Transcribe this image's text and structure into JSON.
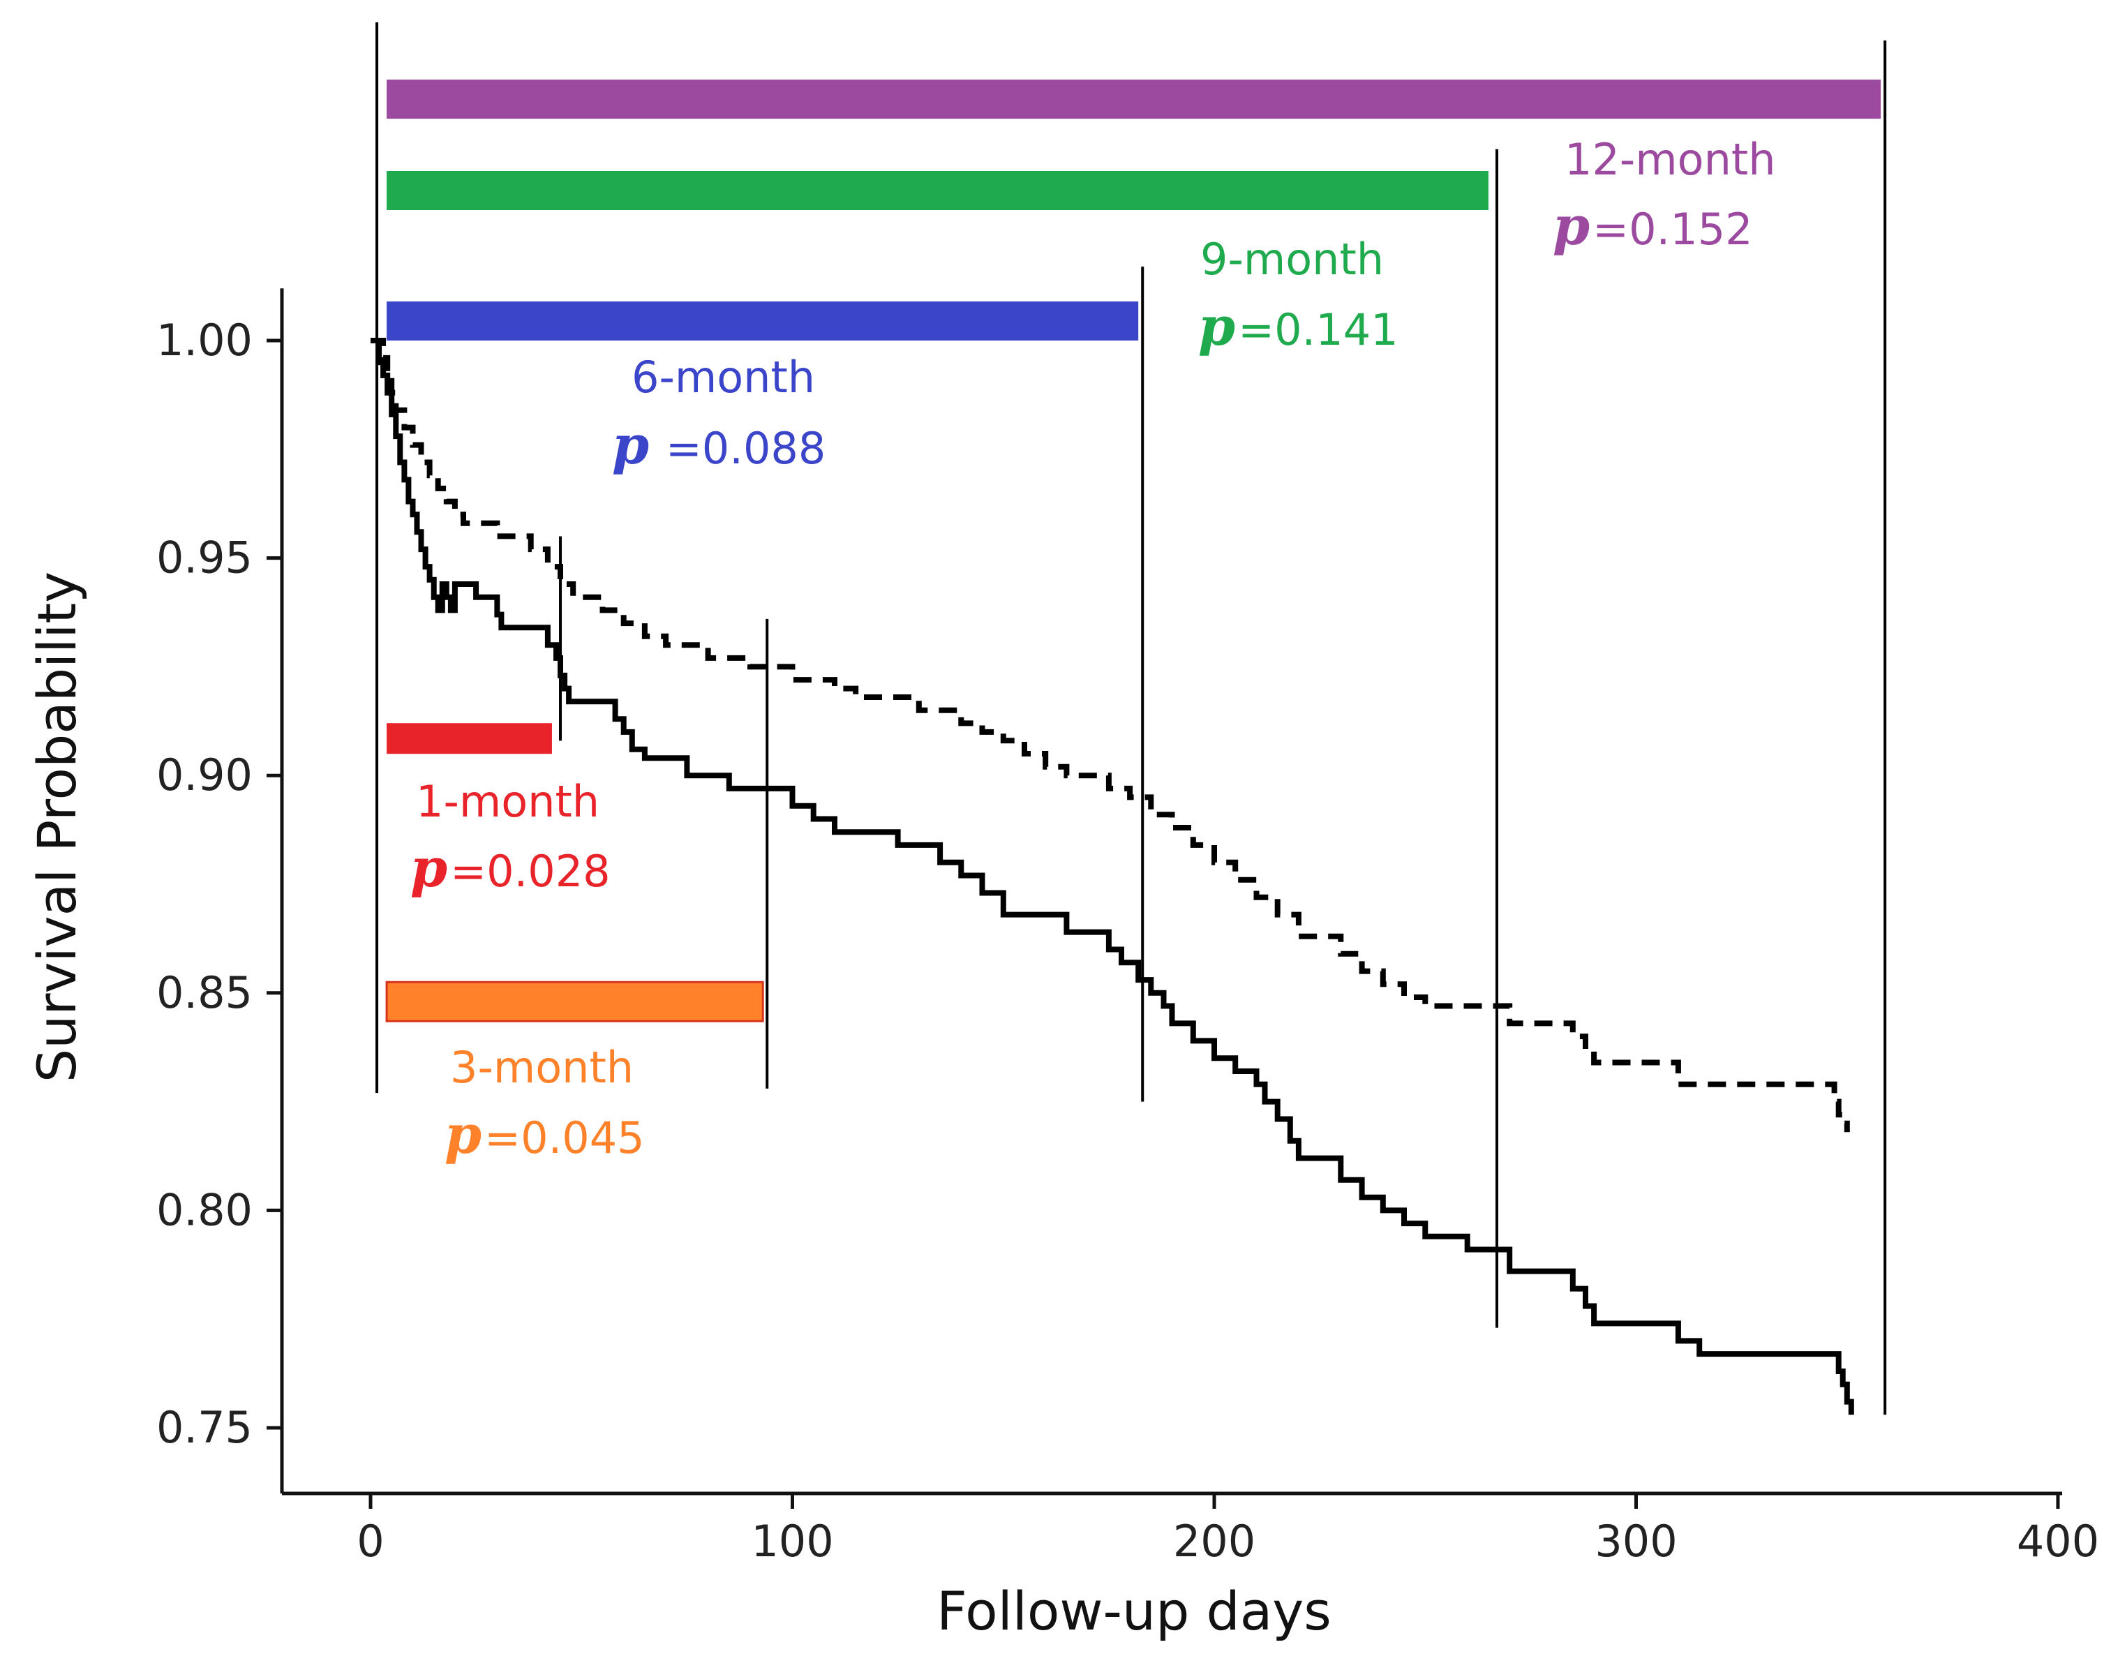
{
  "chart_data": {
    "type": "line",
    "title": "",
    "xlabel": "Follow-up days",
    "ylabel": "Survival Probability",
    "xlim": [
      -20,
      400
    ],
    "ylim": [
      0.745,
      1.012
    ],
    "x_ticks": [
      {
        "value": 0,
        "label": "0"
      },
      {
        "value": 100,
        "label": "100"
      },
      {
        "value": 200,
        "label": "200"
      },
      {
        "value": 300,
        "label": "300"
      },
      {
        "value": 400,
        "label": "400"
      }
    ],
    "y_ticks": [
      {
        "value": 1.0,
        "label": "1.00"
      },
      {
        "value": 0.95,
        "label": "0.95"
      },
      {
        "value": 0.9,
        "label": "0.90"
      },
      {
        "value": 0.85,
        "label": "0.85"
      },
      {
        "value": 0.8,
        "label": "0.80"
      },
      {
        "value": 0.75,
        "label": "0.75"
      }
    ],
    "series": [
      {
        "name": "solid",
        "style": "solid",
        "color": "#000000",
        "x": [
          0,
          2,
          3,
          4,
          5,
          6,
          7,
          8,
          9,
          10,
          11,
          12,
          13,
          14,
          15,
          16,
          17,
          18,
          19,
          20,
          25,
          30,
          31,
          38,
          42,
          44,
          45,
          46,
          47,
          50,
          58,
          60,
          62,
          65,
          70,
          75,
          85,
          90,
          95,
          100,
          105,
          110,
          115,
          125,
          135,
          140,
          145,
          150,
          160,
          165,
          170,
          175,
          178,
          180,
          182,
          185,
          188,
          190,
          195,
          200,
          205,
          210,
          212,
          215,
          218,
          220,
          230,
          235,
          240,
          245,
          250,
          260,
          270,
          280,
          285,
          288,
          290,
          300,
          310,
          315,
          320,
          330,
          340,
          348,
          349,
          350,
          351
        ],
        "y": [
          1.0,
          0.995,
          0.992,
          0.988,
          0.983,
          0.978,
          0.972,
          0.968,
          0.963,
          0.96,
          0.956,
          0.952,
          0.948,
          0.945,
          0.941,
          0.938,
          0.944,
          0.941,
          0.938,
          0.944,
          0.941,
          0.937,
          0.934,
          0.934,
          0.93,
          0.927,
          0.923,
          0.92,
          0.917,
          0.917,
          0.913,
          0.91,
          0.906,
          0.904,
          0.904,
          0.9,
          0.897,
          0.897,
          0.897,
          0.893,
          0.89,
          0.887,
          0.887,
          0.884,
          0.88,
          0.877,
          0.873,
          0.868,
          0.868,
          0.864,
          0.864,
          0.86,
          0.857,
          0.857,
          0.853,
          0.85,
          0.847,
          0.843,
          0.839,
          0.835,
          0.832,
          0.829,
          0.825,
          0.821,
          0.816,
          0.812,
          0.807,
          0.803,
          0.8,
          0.797,
          0.794,
          0.791,
          0.786,
          0.786,
          0.782,
          0.778,
          0.774,
          0.774,
          0.77,
          0.767,
          0.767,
          0.767,
          0.767,
          0.763,
          0.76,
          0.756,
          0.753
        ]
      },
      {
        "name": "dashed",
        "style": "dashed",
        "color": "#000000",
        "x": [
          0,
          3,
          4,
          5,
          6,
          8,
          10,
          12,
          14,
          16,
          18,
          20,
          22,
          25,
          30,
          35,
          38,
          42,
          45,
          48,
          50,
          55,
          60,
          65,
          70,
          75,
          80,
          85,
          90,
          95,
          100,
          105,
          110,
          115,
          120,
          130,
          140,
          145,
          150,
          155,
          160,
          165,
          170,
          175,
          180,
          185,
          190,
          195,
          200,
          205,
          210,
          215,
          220,
          225,
          230,
          235,
          240,
          245,
          250,
          260,
          270,
          280,
          285,
          288,
          290,
          300,
          310,
          315,
          320,
          330,
          340,
          347,
          348,
          349,
          350
        ],
        "y": [
          1.0,
          0.996,
          0.992,
          0.988,
          0.984,
          0.98,
          0.976,
          0.972,
          0.969,
          0.966,
          0.963,
          0.96,
          0.958,
          0.958,
          0.955,
          0.955,
          0.952,
          0.948,
          0.944,
          0.941,
          0.941,
          0.938,
          0.935,
          0.932,
          0.93,
          0.93,
          0.927,
          0.927,
          0.925,
          0.925,
          0.922,
          0.922,
          0.92,
          0.918,
          0.918,
          0.915,
          0.912,
          0.91,
          0.908,
          0.905,
          0.902,
          0.9,
          0.9,
          0.897,
          0.895,
          0.891,
          0.888,
          0.884,
          0.88,
          0.876,
          0.872,
          0.868,
          0.863,
          0.863,
          0.859,
          0.855,
          0.852,
          0.849,
          0.847,
          0.847,
          0.843,
          0.843,
          0.84,
          0.837,
          0.834,
          0.834,
          0.829,
          0.829,
          0.829,
          0.829,
          0.829,
          0.825,
          0.822,
          0.82,
          0.818
        ]
      }
    ],
    "period_markers": [
      {
        "label": "1-month",
        "p_symbol": "p",
        "p_text": "=0.028",
        "color": "#e8232a",
        "days": 45,
        "bar_y": 0.9085,
        "bar_end": 43,
        "line_top": 0.955,
        "line_bottom": 0.908
      },
      {
        "label": "3-month",
        "p_symbol": "p",
        "p_text": "=0.045",
        "color": "#ff8129",
        "days": 94,
        "bar_y": 0.848,
        "bar_end": 93,
        "line_top": 0.936,
        "line_bottom": 0.828
      },
      {
        "label": "6-month",
        "p_symbol": "p",
        "p_text": " =0.088",
        "color": "#3b45c9",
        "days": 183,
        "bar_y": 1.0045,
        "bar_end": 182,
        "line_top": 1.017,
        "line_bottom": 0.825
      },
      {
        "label": "9-month",
        "p_symbol": "p",
        "p_text": "=0.141",
        "color": "#1fab4d",
        "days": 267,
        "bar_y": 1.0345,
        "bar_end": 265,
        "line_top": 1.044,
        "line_bottom": 0.773
      },
      {
        "label": "12-month",
        "p_symbol": "p",
        "p_text": "=0.152",
        "color": "#9b4aa0",
        "days": 359,
        "bar_y": 1.0555,
        "bar_end": 358,
        "line_top": 1.069,
        "line_bottom": 0.753
      }
    ]
  }
}
